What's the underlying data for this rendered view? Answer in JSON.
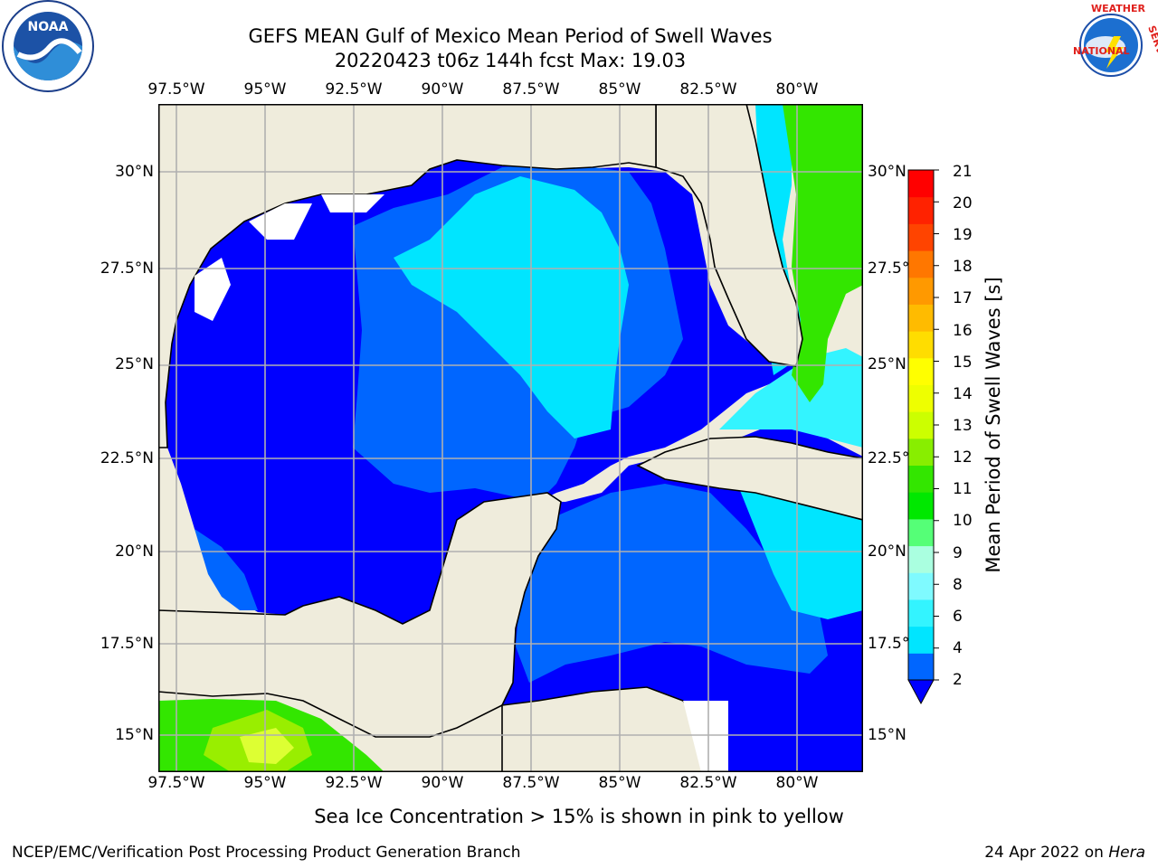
{
  "header": {
    "title_line1": "GEFS MEAN Gulf of Mexico Mean Period of Swell Waves",
    "title_line2": "20220423 t06z 144h fcst   Max: 19.03"
  },
  "logos": {
    "left": "NOAA",
    "right": "NATIONAL WEATHER SERVICE"
  },
  "map": {
    "lon_labels": [
      "97.5°W",
      "95°W",
      "92.5°W",
      "90°W",
      "87.5°W",
      "85°W",
      "82.5°W",
      "80°W"
    ],
    "lat_labels_left": [
      "30°N",
      "27.5°N",
      "25°N",
      "22.5°N",
      "20°N",
      "17.5°N",
      "15°N"
    ],
    "lat_labels_right": [
      "30°N",
      "27.5°N",
      "25°N",
      "22.5°N",
      "20°N",
      "17.5°N",
      "15°N"
    ],
    "land_color": "#efecdc",
    "ocean_min_color": "#0000ff"
  },
  "colorbar": {
    "title": "Mean Period of Swell Waves [s]",
    "ticks": [
      "21",
      "20",
      "19",
      "18",
      "17",
      "16",
      "15",
      "14",
      "13",
      "12",
      "11",
      "10",
      "9",
      "8",
      "6",
      "4",
      "2"
    ],
    "colors": [
      "#0066ff",
      "#00e5ff",
      "#33f4ff",
      "#7ffaff",
      "#aaffe0",
      "#55ff77",
      "#00e800",
      "#33e600",
      "#88ee00",
      "#ccff00",
      "#eeff00",
      "#ffff00",
      "#ffdd00",
      "#ffbb00",
      "#ff9900",
      "#ff7700",
      "#ff4400",
      "#ff2200",
      "#ff0000"
    ]
  },
  "annotation": "Sea Ice Concentration > 15% is shown in pink to yellow",
  "footer": {
    "left": "NCEP/EMC/Verification Post Processing Product Generation Branch",
    "right_date": "24 Apr 2022 on",
    "right_host": "Hera"
  }
}
